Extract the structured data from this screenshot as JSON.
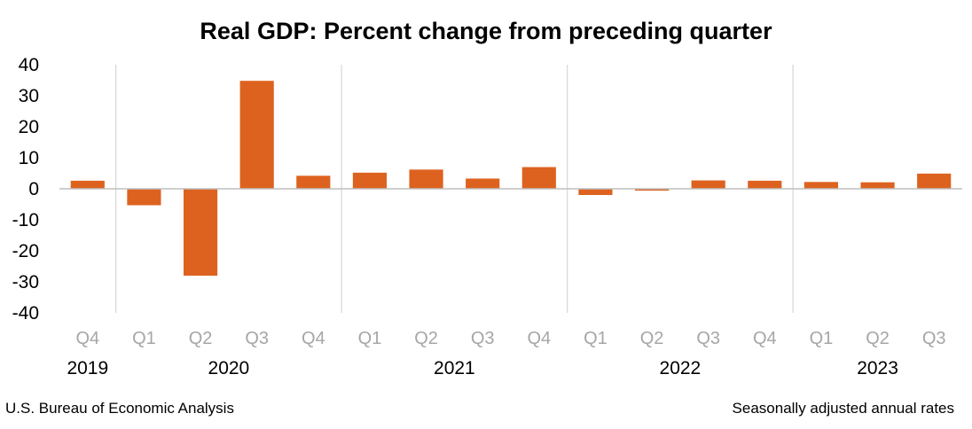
{
  "chart_data": {
    "type": "bar",
    "title": "Real GDP:  Percent change from preceding quarter",
    "categories": [
      "Q4",
      "Q1",
      "Q2",
      "Q3",
      "Q4",
      "Q1",
      "Q2",
      "Q3",
      "Q4",
      "Q1",
      "Q2",
      "Q3",
      "Q4",
      "Q1",
      "Q2",
      "Q3"
    ],
    "years": [
      {
        "label": "2019",
        "first": 0,
        "last": 0
      },
      {
        "label": "2020",
        "first": 1,
        "last": 4
      },
      {
        "label": "2021",
        "first": 5,
        "last": 8
      },
      {
        "label": "2022",
        "first": 9,
        "last": 12
      },
      {
        "label": "2023",
        "first": 13,
        "last": 15
      }
    ],
    "values": [
      2.6,
      -5.3,
      -28.0,
      34.8,
      4.2,
      5.2,
      6.2,
      3.3,
      7.0,
      -2.0,
      -0.6,
      2.7,
      2.6,
      2.2,
      2.1,
      4.9
    ],
    "ylim": [
      -40,
      40
    ],
    "yticks": [
      40,
      30,
      20,
      10,
      0,
      -10,
      -20,
      -30,
      -40
    ],
    "bar_color": "#dd6220",
    "grid": false
  },
  "footer": {
    "source": "U.S. Bureau of Economic Analysis",
    "note": "Seasonally adjusted annual rates"
  }
}
